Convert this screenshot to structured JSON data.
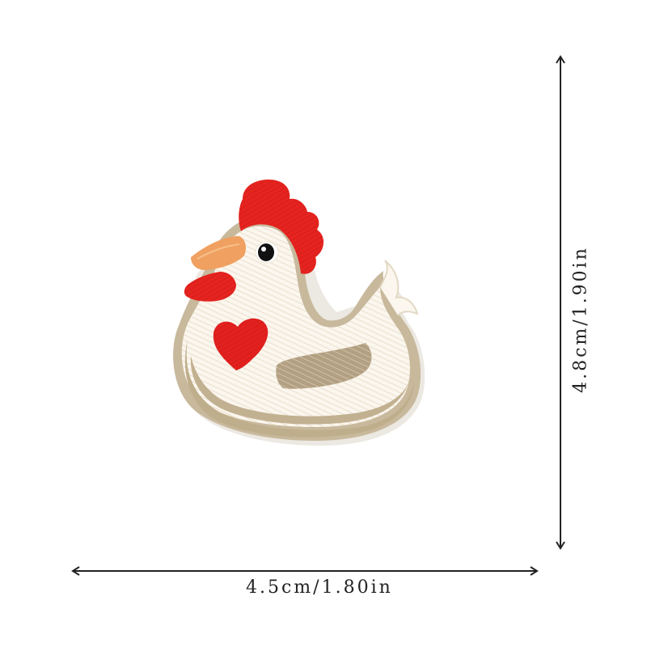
{
  "product": {
    "subject": "embroidered hen patch",
    "width_label": "4.5cm/1.80in",
    "height_label": "4.8cm/1.90in"
  },
  "colors": {
    "comb": "#e6231f",
    "beak": "#f0a060",
    "body": "#fbf6ee",
    "heart": "#e3201e",
    "wing": "#b3a082",
    "border": "#c8b99c",
    "eye": "#111111",
    "dimension_line": "#222222"
  }
}
